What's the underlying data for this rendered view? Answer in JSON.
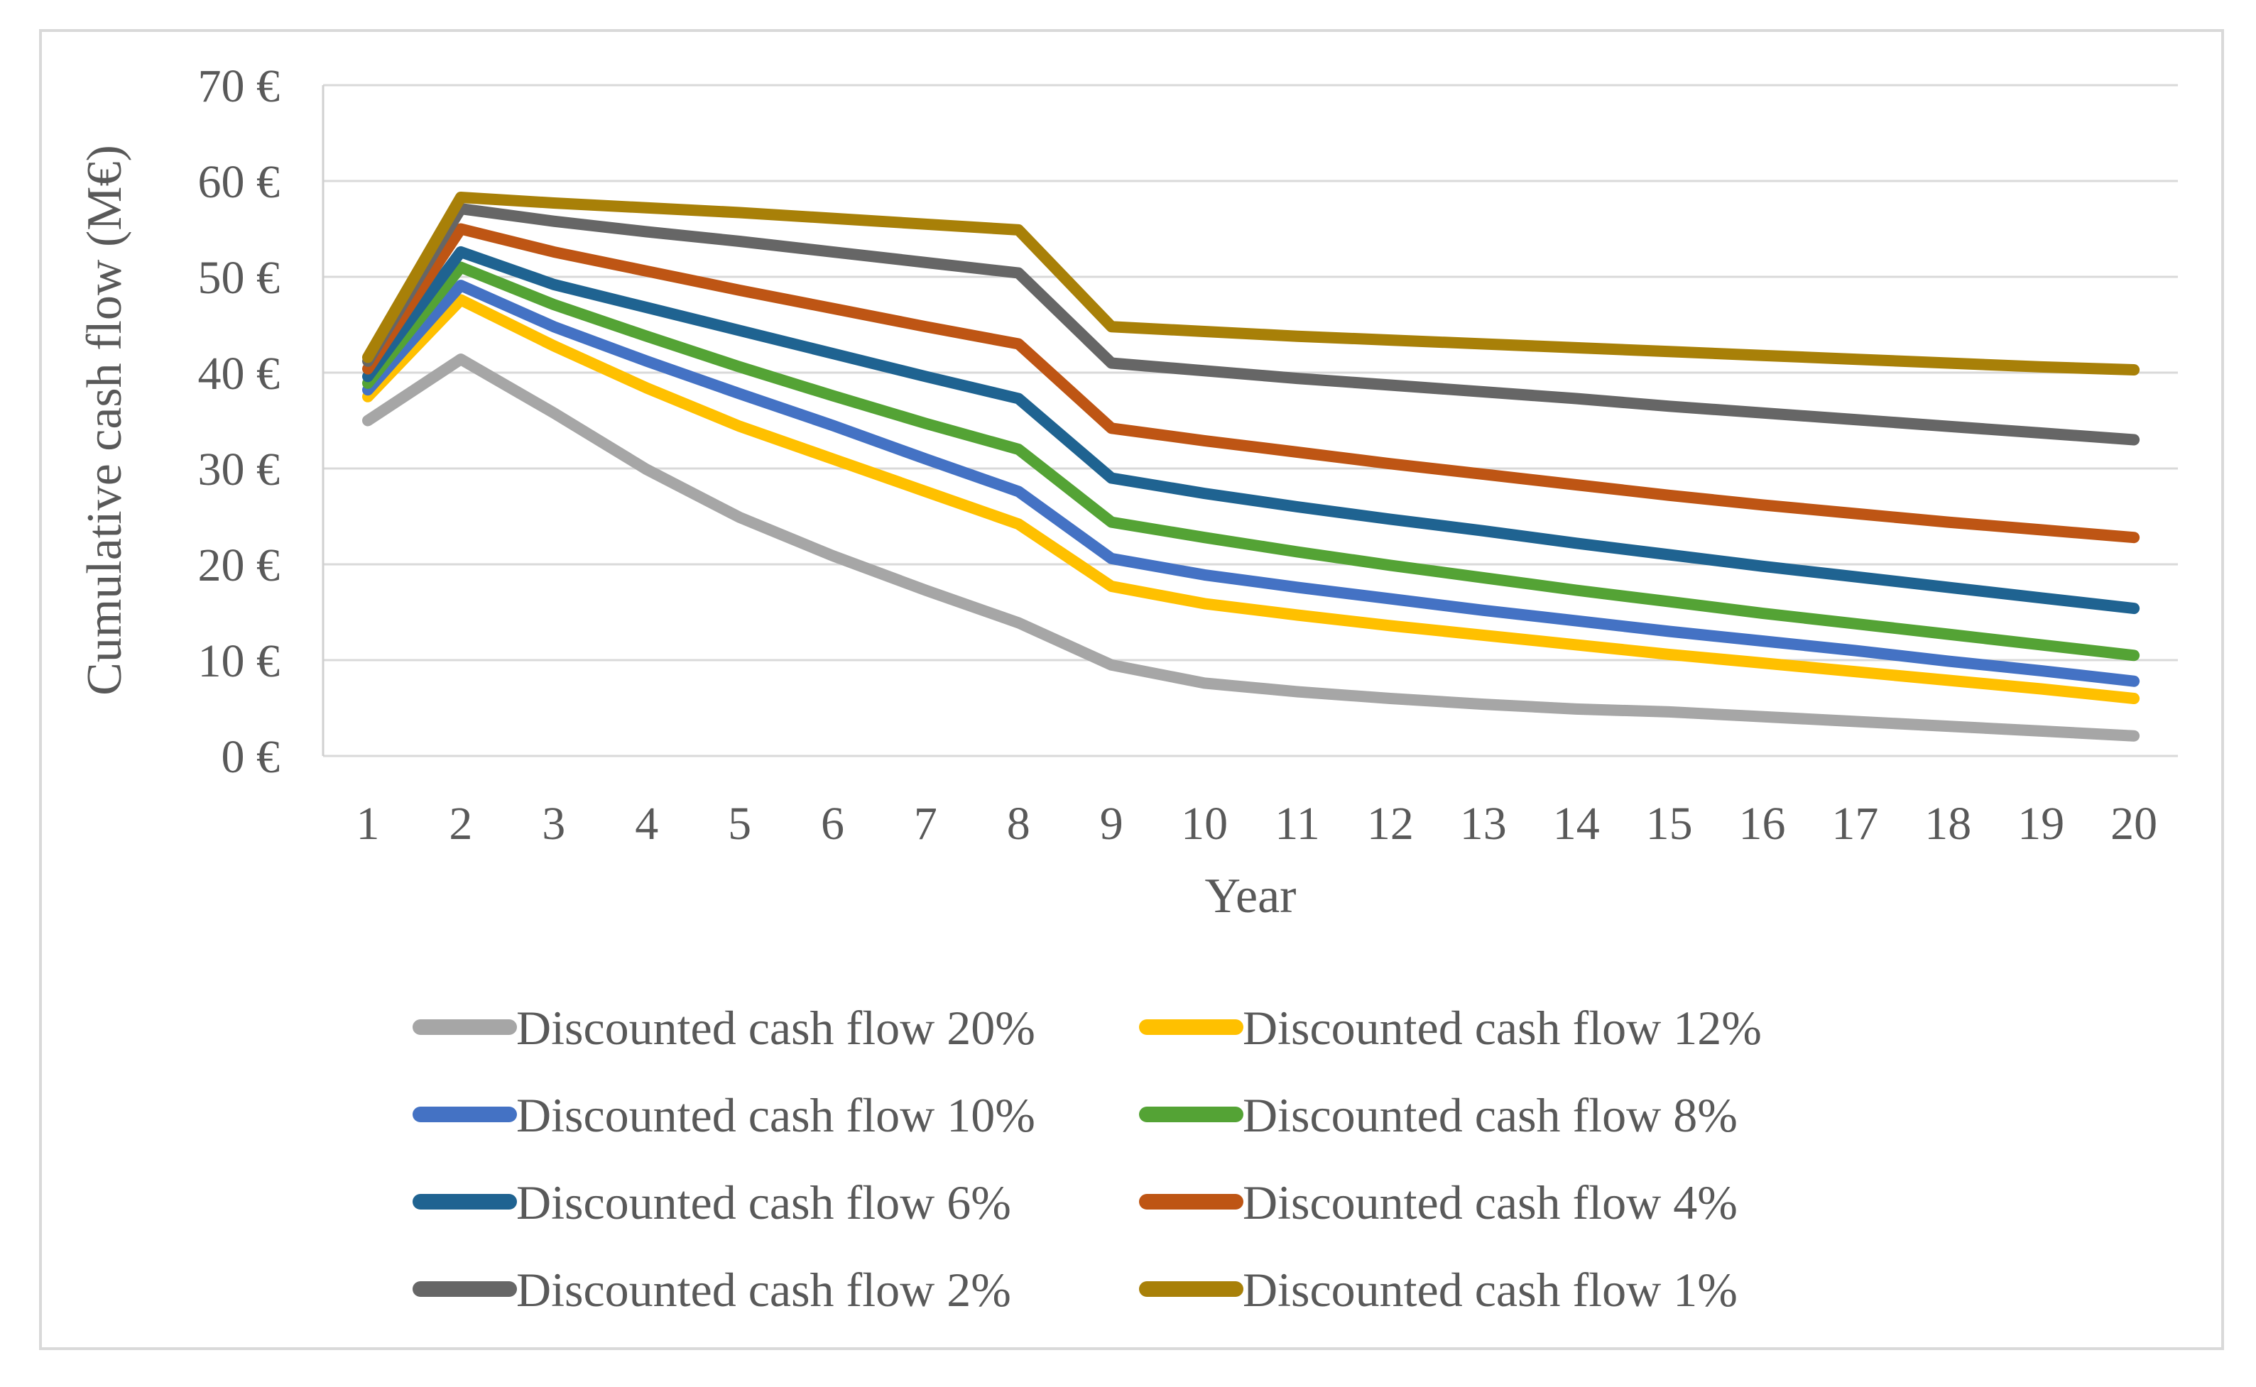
{
  "chart_data": {
    "type": "line",
    "title": "",
    "xlabel": "Year",
    "ylabel": "Cumulative cash flow (M€)",
    "unit": "M€",
    "x": [
      1,
      2,
      3,
      4,
      5,
      6,
      7,
      8,
      9,
      10,
      11,
      12,
      13,
      14,
      15,
      16,
      17,
      18,
      19,
      20
    ],
    "ylim": [
      0,
      70
    ],
    "ytick_step": 10,
    "ytick_labels": [
      "0 €",
      "10 €",
      "20 €",
      "30 €",
      "40 €",
      "50 €",
      "60 €",
      "70 €"
    ],
    "grid": true,
    "legend_position": "bottom, two columns",
    "axis_color": "#d9d9d9",
    "text_color": "#595959",
    "series": [
      {
        "label": "Discounted cash flow 20%",
        "rate": "20%",
        "color": "#a6a6a6",
        "values": [
          35.0,
          41.4,
          35.8,
          29.9,
          24.9,
          20.9,
          17.3,
          13.9,
          9.5,
          7.6,
          6.7,
          6.0,
          5.4,
          4.9,
          4.6,
          4.1,
          3.6,
          3.1,
          2.6,
          2.1
        ]
      },
      {
        "label": "Discounted cash flow 12%",
        "rate": "12%",
        "color": "#ffc000",
        "values": [
          37.5,
          47.6,
          42.8,
          38.4,
          34.4,
          31.0,
          27.6,
          24.2,
          17.7,
          15.9,
          14.7,
          13.6,
          12.6,
          11.6,
          10.6,
          9.7,
          8.8,
          7.9,
          7.0,
          6.0
        ]
      },
      {
        "label": "Discounted cash flow 10%",
        "rate": "10%",
        "color": "#4472c4",
        "values": [
          38.2,
          49.1,
          44.8,
          41.2,
          37.8,
          34.5,
          31.0,
          27.6,
          20.6,
          18.9,
          17.6,
          16.4,
          15.2,
          14.1,
          13.0,
          12.0,
          11.0,
          9.9,
          8.9,
          7.8
        ]
      },
      {
        "label": "Discounted cash flow 8%",
        "rate": "8%",
        "color": "#54a335",
        "values": [
          38.9,
          51.0,
          47.1,
          43.8,
          40.6,
          37.6,
          34.7,
          32.0,
          24.4,
          22.8,
          21.3,
          19.9,
          18.6,
          17.3,
          16.1,
          14.9,
          13.8,
          12.7,
          11.6,
          10.5
        ]
      },
      {
        "label": "Discounted cash flow 6%",
        "rate": "6%",
        "color": "#1f6391",
        "values": [
          39.6,
          52.6,
          49.2,
          46.8,
          44.4,
          42.0,
          39.6,
          37.3,
          29.0,
          27.4,
          26.0,
          24.7,
          23.5,
          22.2,
          21.0,
          19.8,
          18.7,
          17.6,
          16.5,
          15.4
        ]
      },
      {
        "label": "Discounted cash flow 4%",
        "rate": "4%",
        "color": "#be5514",
        "values": [
          40.4,
          55.0,
          52.6,
          50.6,
          48.6,
          46.7,
          44.8,
          43.0,
          34.2,
          32.9,
          31.7,
          30.5,
          29.4,
          28.3,
          27.2,
          26.2,
          25.3,
          24.4,
          23.6,
          22.8
        ]
      },
      {
        "label": "Discounted cash flow 2%",
        "rate": "2%",
        "color": "#666666",
        "values": [
          41.2,
          57.1,
          55.8,
          54.7,
          53.7,
          52.6,
          51.5,
          50.4,
          41.0,
          40.2,
          39.4,
          38.7,
          38.0,
          37.3,
          36.5,
          35.8,
          35.1,
          34.4,
          33.7,
          33.0
        ]
      },
      {
        "label": "Discounted cash flow 1%",
        "rate": "1%",
        "color": "#a88008",
        "values": [
          41.6,
          58.3,
          57.7,
          57.2,
          56.7,
          56.1,
          55.5,
          54.9,
          44.8,
          44.3,
          43.8,
          43.4,
          43.0,
          42.6,
          42.2,
          41.8,
          41.4,
          41.0,
          40.6,
          40.3
        ]
      }
    ],
    "legend_order": [
      "Discounted cash flow 20%",
      "Discounted cash flow 12%",
      "Discounted cash flow 10%",
      "Discounted cash flow 8%",
      "Discounted cash flow 6%",
      "Discounted cash flow 4%",
      "Discounted cash flow 2%",
      "Discounted cash flow 1%"
    ]
  }
}
